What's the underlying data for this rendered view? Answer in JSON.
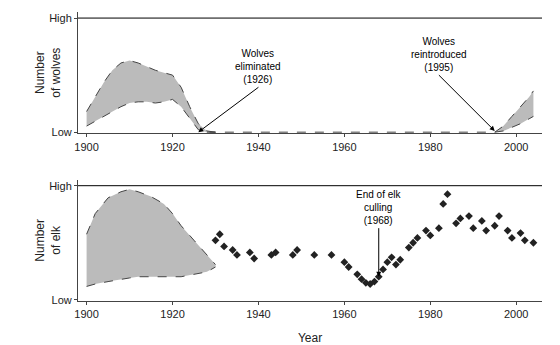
{
  "chart_data": [
    {
      "type": "line",
      "y_label": "Number\nof wolves",
      "xlim": [
        1898,
        2006
      ],
      "xticks": [
        1900,
        1920,
        1940,
        1960,
        1980,
        2000
      ],
      "ylim": [
        0,
        1.0
      ],
      "yticks": [
        {
          "value": 0.01,
          "label": "Low"
        },
        {
          "value": 0.95,
          "label": "High"
        }
      ],
      "grid": false,
      "hline": 0.95,
      "color": "#bbbbbb",
      "series": [
        {
          "type": "band",
          "x": [
            1900,
            1902,
            1904,
            1906,
            1908,
            1910,
            1912,
            1914,
            1916,
            1918,
            1920,
            1922,
            1924,
            1926,
            1928,
            1930
          ],
          "upper": [
            0.18,
            0.3,
            0.42,
            0.52,
            0.58,
            0.6,
            0.58,
            0.55,
            0.52,
            0.5,
            0.48,
            0.38,
            0.22,
            0.08,
            0.02,
            0.01
          ],
          "lower": [
            0.06,
            0.1,
            0.14,
            0.18,
            0.22,
            0.25,
            0.26,
            0.26,
            0.25,
            0.26,
            0.28,
            0.22,
            0.12,
            0.03,
            0.01,
            0.01
          ],
          "color": "#444444",
          "line_style": "dashed"
        },
        {
          "type": "line",
          "x": [
            1928,
            1940,
            1950,
            1960,
            1970,
            1980,
            1990,
            1995
          ],
          "values": [
            0.01,
            0.01,
            0.01,
            0.01,
            0.01,
            0.01,
            0.01,
            0.01
          ],
          "color": "#444444",
          "line_style": "dashed"
        },
        {
          "type": "band",
          "x": [
            1995,
            1997,
            1999,
            2001,
            2003,
            2004
          ],
          "upper": [
            0.01,
            0.06,
            0.14,
            0.22,
            0.3,
            0.35
          ],
          "lower": [
            0.01,
            0.02,
            0.05,
            0.08,
            0.12,
            0.14
          ],
          "color": "#444444",
          "line_style": "dashed"
        }
      ],
      "annotations": [
        {
          "text": "Wolves\neliminated\n(1926)",
          "x": 1926,
          "y": 0.01,
          "text_x": 1940,
          "text_y": 0.38
        },
        {
          "text": "Wolves\nreintroduced\n(1995)",
          "x": 1995,
          "y": 0.02,
          "text_x": 1982,
          "text_y": 0.48
        }
      ]
    },
    {
      "type": "line",
      "x_label": "Year",
      "y_label": "Number\nof elk",
      "xlim": [
        1898,
        2006
      ],
      "xticks": [
        1900,
        1920,
        1940,
        1960,
        1980,
        2000
      ],
      "ylim": [
        0,
        1.0
      ],
      "yticks": [
        {
          "value": 0.01,
          "label": "Low"
        },
        {
          "value": 0.95,
          "label": "High"
        }
      ],
      "grid": false,
      "hline": 0.95,
      "color": "#bbbbbb",
      "series": [
        {
          "type": "band",
          "x": [
            1900,
            1902,
            1905,
            1908,
            1910,
            1912,
            1915,
            1918,
            1920,
            1922,
            1925,
            1928,
            1930
          ],
          "upper": [
            0.55,
            0.72,
            0.85,
            0.9,
            0.92,
            0.9,
            0.86,
            0.8,
            0.72,
            0.62,
            0.5,
            0.38,
            0.3
          ],
          "lower": [
            0.12,
            0.14,
            0.16,
            0.18,
            0.19,
            0.2,
            0.2,
            0.2,
            0.2,
            0.2,
            0.22,
            0.24,
            0.28
          ],
          "color": "#444444",
          "line_style": "dashed"
        },
        {
          "type": "scatter",
          "x": [
            1930,
            1931,
            1932,
            1934,
            1935,
            1938,
            1939,
            1943,
            1944,
            1948,
            1949,
            1953,
            1957,
            1960,
            1961,
            1963,
            1964,
            1965,
            1966,
            1967,
            1968,
            1969,
            1970,
            1971,
            1972,
            1973,
            1975,
            1976,
            1977,
            1979,
            1980,
            1982,
            1983,
            1984,
            1986,
            1987,
            1989,
            1990,
            1992,
            1993,
            1995,
            1996,
            1998,
            1999,
            2001,
            2002,
            2004
          ],
          "values": [
            0.5,
            0.55,
            0.45,
            0.42,
            0.38,
            0.4,
            0.35,
            0.38,
            0.4,
            0.38,
            0.42,
            0.38,
            0.38,
            0.32,
            0.28,
            0.22,
            0.18,
            0.15,
            0.14,
            0.16,
            0.2,
            0.26,
            0.32,
            0.36,
            0.3,
            0.34,
            0.44,
            0.48,
            0.52,
            0.58,
            0.54,
            0.6,
            0.8,
            0.88,
            0.64,
            0.68,
            0.7,
            0.6,
            0.66,
            0.58,
            0.62,
            0.7,
            0.58,
            0.52,
            0.56,
            0.5,
            0.48
          ],
          "color": "#222222",
          "marker": "diamond"
        }
      ],
      "annotations": [
        {
          "text": "End of elk\nculling\n(1968)",
          "x": 1968,
          "y": 0.2,
          "text_x": 1968,
          "text_y": 0.6
        }
      ]
    }
  ]
}
